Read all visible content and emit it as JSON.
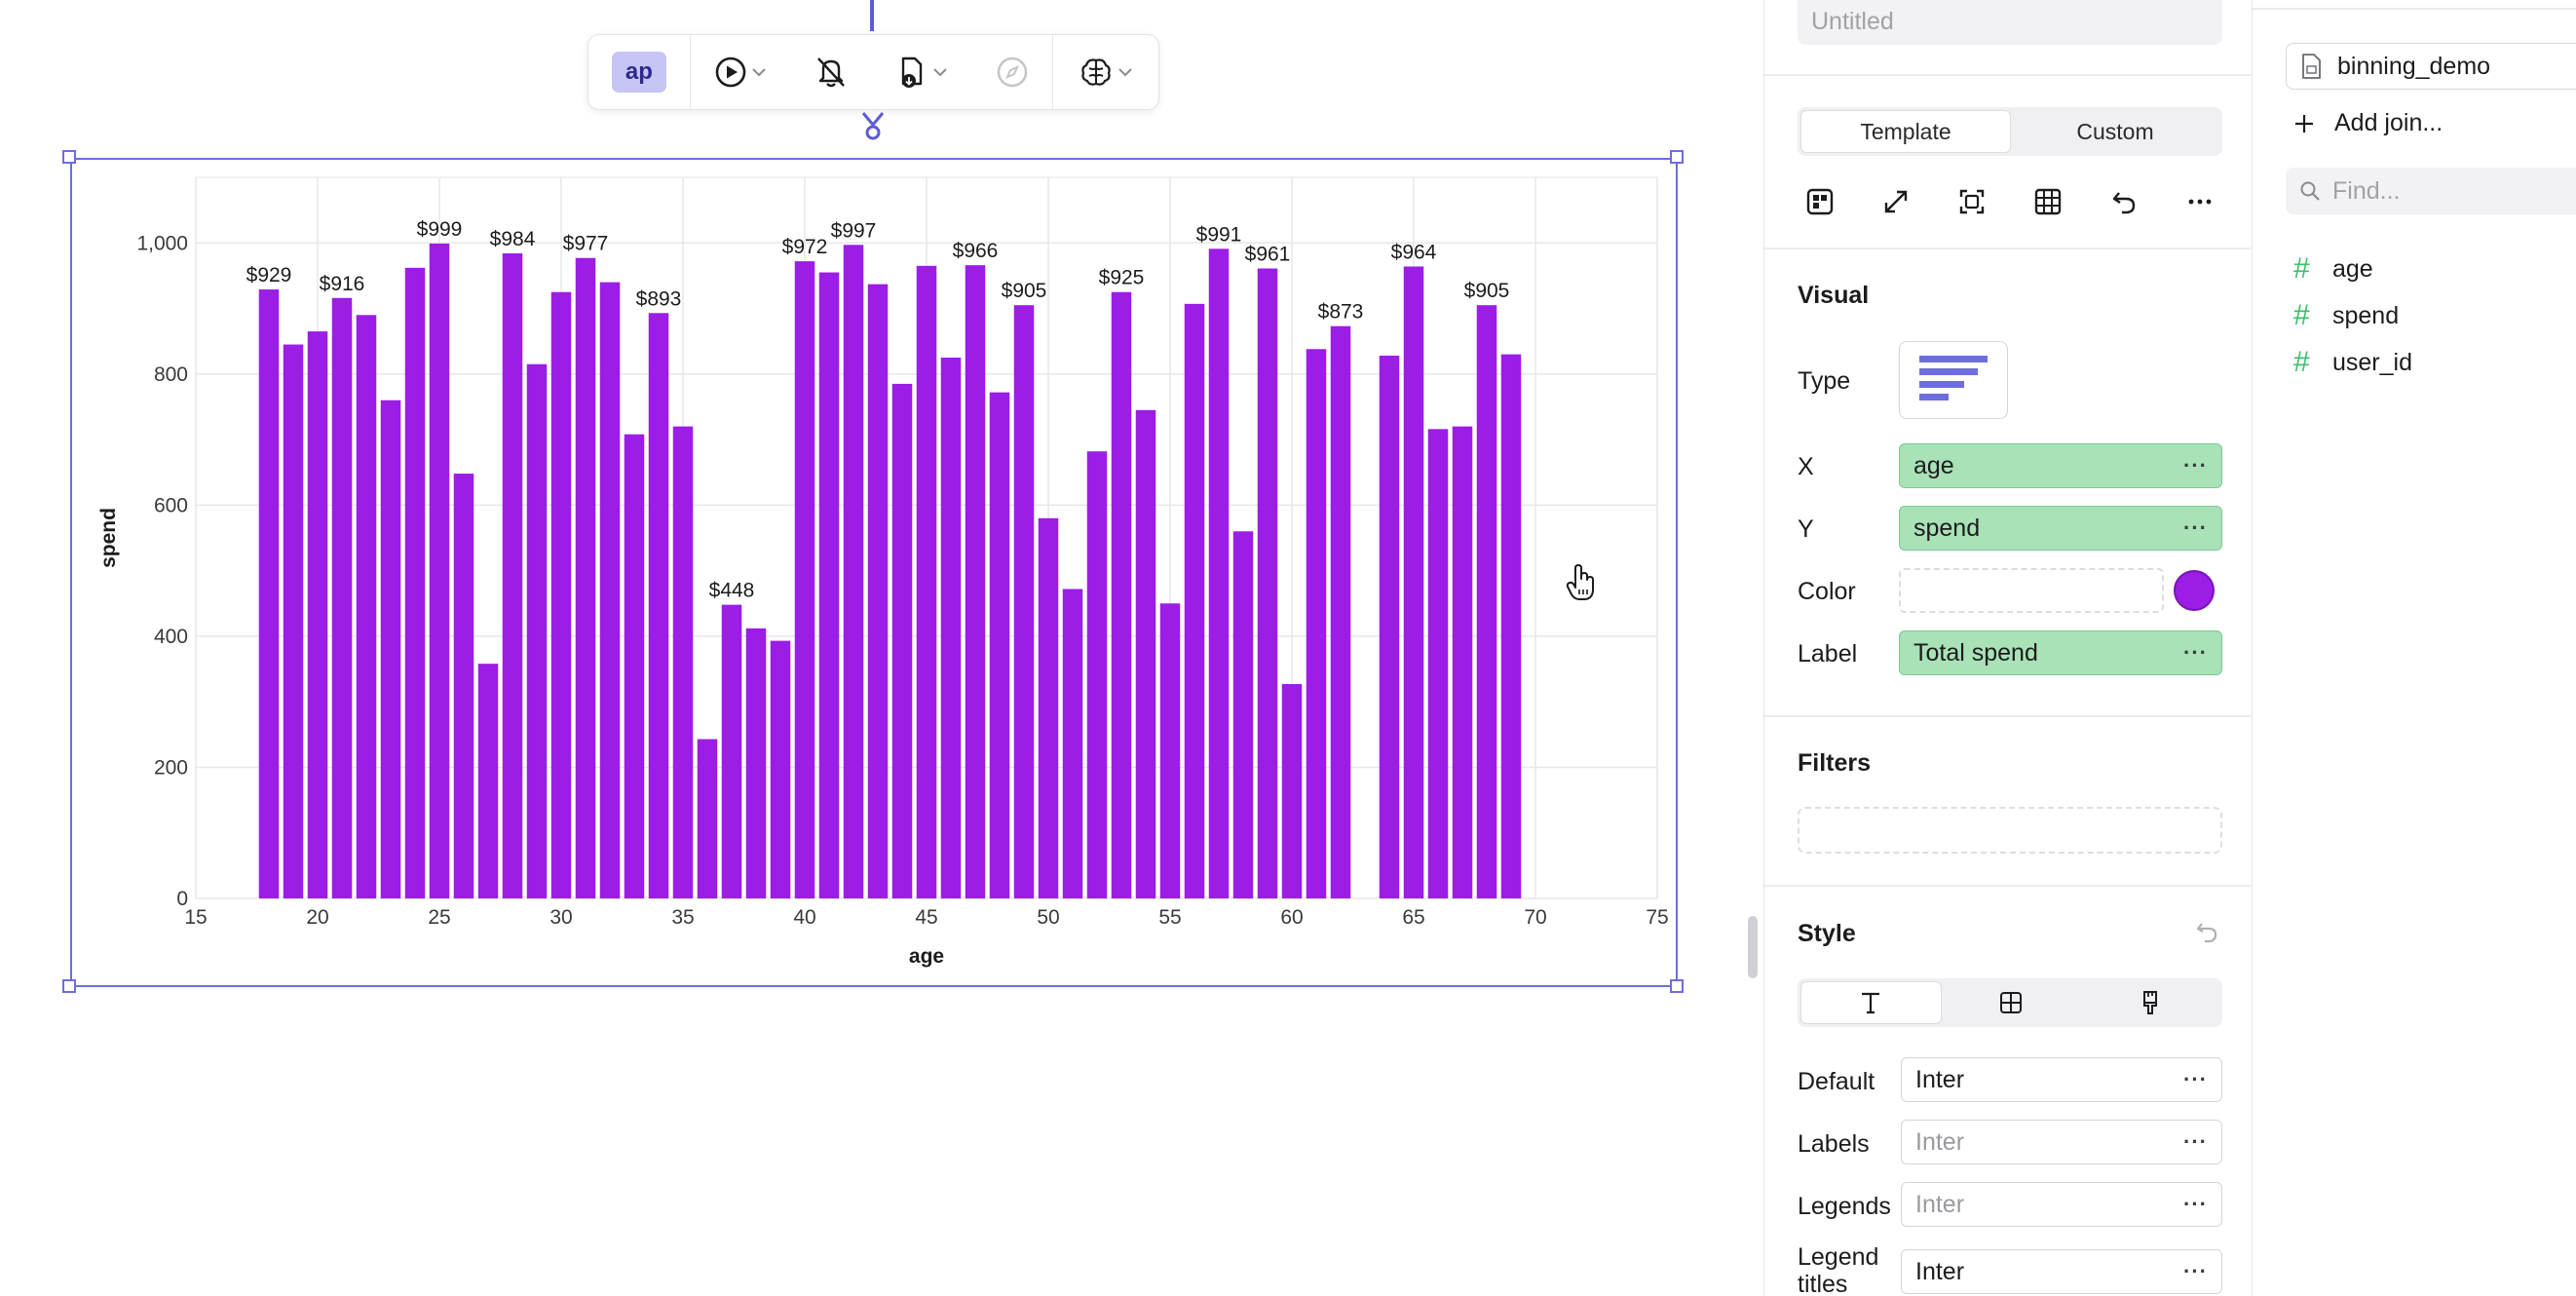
{
  "toolbar": {
    "badge": "ap"
  },
  "panel": {
    "title_placeholder": "Untitled",
    "mode_tabs": [
      "Template",
      "Custom"
    ],
    "visual": {
      "heading": "Visual",
      "type_label": "Type",
      "x_label": "X",
      "x_value": "age",
      "y_label": "Y",
      "y_value": "spend",
      "color_label": "Color",
      "color_value": "#9b1de6",
      "label_label": "Label",
      "label_value": "Total spend",
      "more": "···"
    },
    "filters_heading": "Filters",
    "style": {
      "heading": "Style",
      "fonts": [
        {
          "label": "Default",
          "value": "Inter"
        },
        {
          "label": "Labels",
          "value": "Inter"
        },
        {
          "label": "Legends",
          "value": "Inter"
        },
        {
          "label": "Legend titles",
          "value": "Inter"
        }
      ]
    }
  },
  "datasource": {
    "name": "binning_demo",
    "add_join": "Add join...",
    "find_placeholder": "Find...",
    "fields": [
      "age",
      "spend",
      "user_id"
    ]
  },
  "chart_data": {
    "type": "bar",
    "xlabel": "age",
    "ylabel": "spend",
    "xlim": [
      15,
      75
    ],
    "ylim": [
      0,
      1100
    ],
    "xticks": [
      15,
      20,
      25,
      30,
      35,
      40,
      45,
      50,
      55,
      60,
      65,
      70,
      75
    ],
    "yticks": [
      0,
      200,
      400,
      600,
      800,
      1000
    ],
    "ytick_labels": [
      "0",
      "200",
      "400",
      "600",
      "800",
      "1,000"
    ],
    "grid": true,
    "bar_color": "#9b1de6",
    "x": [
      18,
      19,
      20,
      21,
      22,
      23,
      24,
      25,
      26,
      27,
      28,
      29,
      30,
      31,
      32,
      33,
      34,
      35,
      36,
      37,
      38,
      39,
      40,
      41,
      42,
      43,
      44,
      45,
      46,
      47,
      48,
      49,
      50,
      51,
      52,
      53,
      54,
      55,
      56,
      57,
      58,
      59,
      60,
      61,
      62,
      64,
      65,
      66,
      67,
      68,
      69
    ],
    "values": [
      929,
      845,
      865,
      916,
      890,
      760,
      962,
      999,
      648,
      358,
      984,
      815,
      925,
      977,
      940,
      708,
      893,
      720,
      243,
      448,
      412,
      393,
      972,
      955,
      997,
      937,
      785,
      965,
      825,
      966,
      772,
      905,
      580,
      472,
      682,
      925,
      745,
      450,
      907,
      991,
      560,
      961,
      327,
      838,
      873,
      828,
      964,
      716,
      720,
      905,
      830
    ],
    "data_labels": {
      "18": "$929",
      "21": "$916",
      "25": "$999",
      "28": "$984",
      "31": "$977",
      "34": "$893",
      "37": "$448",
      "40": "$972",
      "42": "$997",
      "47": "$966",
      "49": "$905",
      "53": "$925",
      "57": "$991",
      "59": "$961",
      "62": "$873",
      "65": "$964",
      "68": "$905"
    }
  }
}
